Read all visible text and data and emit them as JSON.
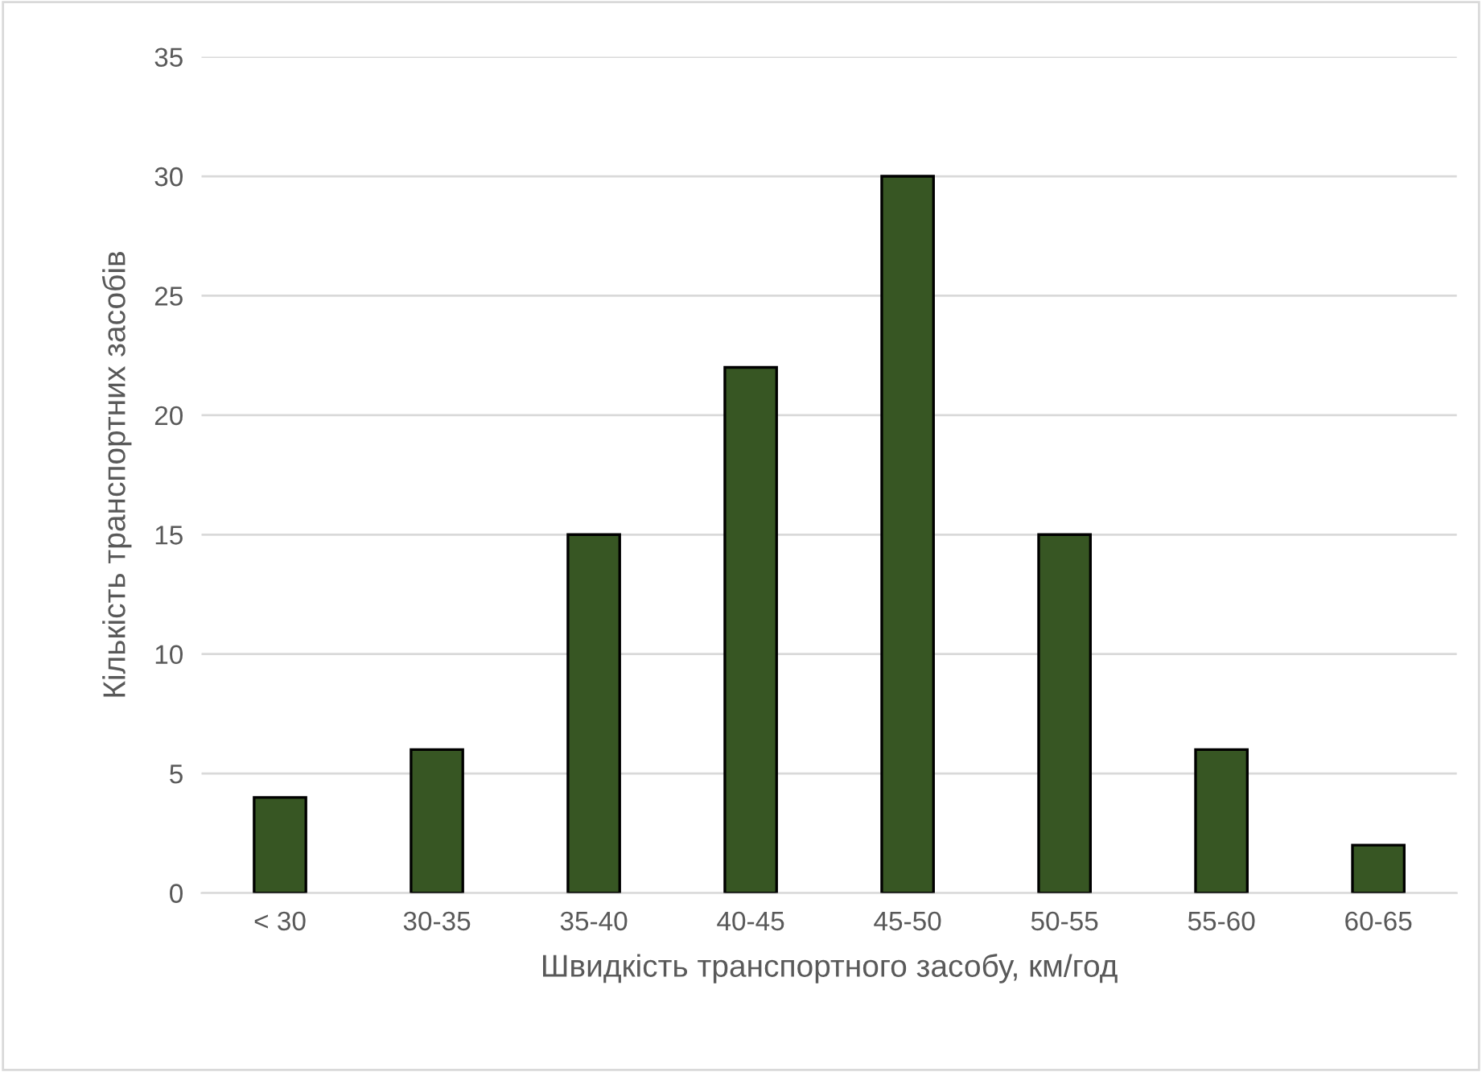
{
  "chart_data": {
    "type": "bar",
    "xlabel": "Швидкість транспортного засобу, км/год",
    "ylabel": "Кількість транспортних засобів",
    "categories": [
      "< 30",
      "30-35",
      "35-40",
      "40-45",
      "45-50",
      "50-55",
      "55-60",
      "60-65"
    ],
    "values": [
      4,
      6,
      15,
      22,
      30,
      15,
      6,
      2
    ],
    "color": "#375623",
    "ylim": [
      0,
      35
    ],
    "yticks": [
      0,
      5,
      10,
      15,
      20,
      25,
      30,
      35
    ],
    "grid": "y",
    "legend": false
  }
}
